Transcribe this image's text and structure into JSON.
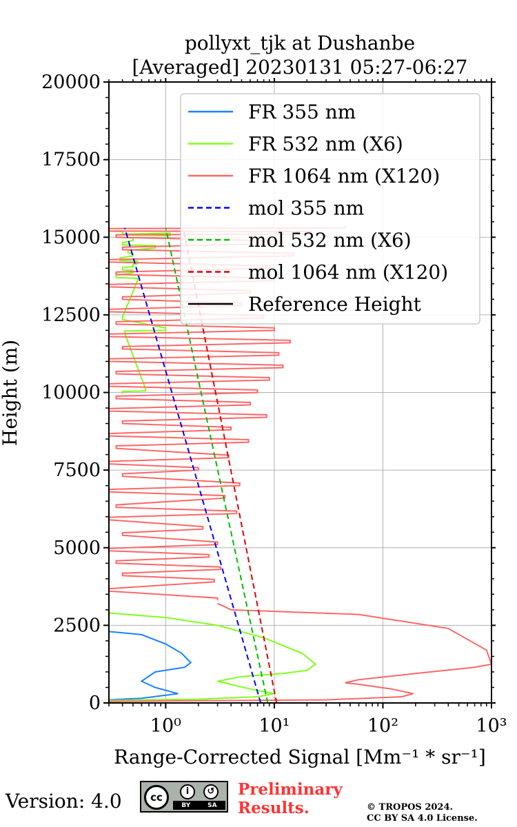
{
  "chart_data": {
    "type": "line",
    "title_line1": "pollyxt_tjk at Dushanbe",
    "title_line2": "[Averaged] 20230131 05:27-06:27",
    "xlabel": "Range-Corrected Signal [Mm⁻¹ * sr⁻¹]",
    "ylabel": "Height (m)",
    "xscale": "log",
    "xlim": [
      0.3,
      1000
    ],
    "ylim": [
      0,
      20000
    ],
    "yticks": [
      0,
      2500,
      5000,
      7500,
      10000,
      12500,
      15000,
      17500,
      20000
    ],
    "xticks": [
      1,
      10,
      100,
      1000
    ],
    "xtick_labels": [
      "10⁰",
      "10¹",
      "10²",
      "10³"
    ],
    "grid": true,
    "legend_position": "top-right",
    "series": [
      {
        "name": "FR 355 nm",
        "color": "#1a80ff",
        "style": "solid",
        "x": [
          0.3,
          0.6,
          1.3,
          0.8,
          0.6,
          0.8,
          1.5,
          1.7,
          1.4,
          1.0,
          0.6,
          0.3
        ],
        "y": [
          100,
          150,
          300,
          500,
          700,
          1000,
          1150,
          1300,
          1600,
          1900,
          2200,
          2300
        ]
      },
      {
        "name": "FR 532 nm (X6)",
        "color": "#80ff1a",
        "style": "solid",
        "x": [
          0.3,
          2.0,
          7.0,
          10.0,
          6.0,
          3.0,
          5.0,
          12.0,
          20.0,
          24.0,
          18.0,
          8.0,
          3.0,
          1.0,
          0.3
        ],
        "y": [
          80,
          120,
          200,
          300,
          450,
          700,
          850,
          950,
          1050,
          1250,
          1600,
          2100,
          2500,
          2750,
          2900
        ],
        "upper_x": [
          0.4,
          0.65,
          0.42,
          1.0,
          0.4,
          0.55,
          0.35,
          0.5,
          0.4,
          0.5,
          0.55,
          0.38,
          0.5,
          0.45,
          0.8,
          0.4,
          0.5,
          0.35,
          1.1,
          0.4,
          0.3
        ],
        "upper_y": [
          9950,
          10050,
          11900,
          12000,
          12350,
          13600,
          13700,
          13850,
          13950,
          14050,
          14150,
          14250,
          14400,
          14500,
          14650,
          14750,
          14900,
          15000,
          15050,
          15100,
          15200
        ]
      },
      {
        "name": "FR 1064 nm (X120)",
        "color": "#ff6666",
        "style": "solid",
        "x": [
          0.3,
          30,
          150,
          190,
          120,
          60,
          45,
          60,
          200,
          700,
          1000,
          900,
          400,
          60,
          4,
          3.5,
          3.0
        ],
        "y": [
          50,
          100,
          200,
          300,
          450,
          600,
          650,
          750,
          950,
          1150,
          1250,
          1700,
          2400,
          2850,
          3000,
          3100,
          3200
        ],
        "upper_x": [
          3.0,
          0.3,
          2.8,
          0.4,
          3.2,
          0.35,
          2.5,
          0.3,
          3.0,
          0.4,
          2.2,
          0.3,
          4.5,
          0.35,
          3.5,
          0.3,
          4.8,
          0.4,
          2.0,
          0.3,
          3.8,
          0.35,
          5.8,
          0.3,
          4.0,
          0.4,
          8.5,
          0.3,
          6.0,
          0.35,
          7.0,
          0.3,
          9.0,
          0.35,
          12.0,
          0.3,
          11.0,
          0.4,
          14.0,
          0.3,
          10.0,
          0.35,
          8.0,
          0.3,
          5.0,
          0.4,
          6.0,
          0.3,
          10.0,
          0.35,
          9.0,
          0.3,
          15.0,
          0.4,
          12.0,
          0.35,
          22.0,
          0.3,
          45.0
        ],
        "upper_y": [
          3300,
          3600,
          3900,
          4100,
          4300,
          4500,
          4700,
          4900,
          5100,
          5400,
          5600,
          5900,
          6100,
          6300,
          6600,
          6800,
          7000,
          7300,
          7500,
          7700,
          7900,
          8200,
          8400,
          8600,
          8800,
          9000,
          9200,
          9400,
          9600,
          9800,
          10000,
          10200,
          10400,
          10600,
          10800,
          11000,
          11200,
          11400,
          11600,
          11800,
          12000,
          12200,
          12400,
          12600,
          12800,
          13000,
          13200,
          13400,
          13600,
          13800,
          14000,
          14200,
          14400,
          14600,
          14800,
          15000,
          15100,
          15200,
          15300
        ]
      },
      {
        "name": "mol 355 nm",
        "color": "#0000ff",
        "style": "dashed",
        "x": [
          7.5,
          0.42
        ],
        "y": [
          0,
          15300
        ]
      },
      {
        "name": "mol 532 nm (X6)",
        "color": "#00bb00",
        "style": "dashed",
        "x": [
          8.7,
          1.0
        ],
        "y": [
          0,
          15300
        ]
      },
      {
        "name": "mol 1064 nm (X120)",
        "color": "#dd0000",
        "style": "dashed",
        "x": [
          10.5,
          1.45
        ],
        "y": [
          0,
          15300
        ]
      },
      {
        "name": "Reference Height",
        "color": "#000000",
        "style": "solid",
        "x": [],
        "y": []
      }
    ]
  },
  "footer": {
    "version_label": "Version: 4.0",
    "preliminary_line1": "Preliminary",
    "preliminary_line2": "Results.",
    "copyright_line1": "© TROPOS 2024.",
    "copyright_line2": "CC BY SA 4.0 License.",
    "cc_badge_text": "cc",
    "cc_by": "BY",
    "cc_sa": "SA"
  }
}
